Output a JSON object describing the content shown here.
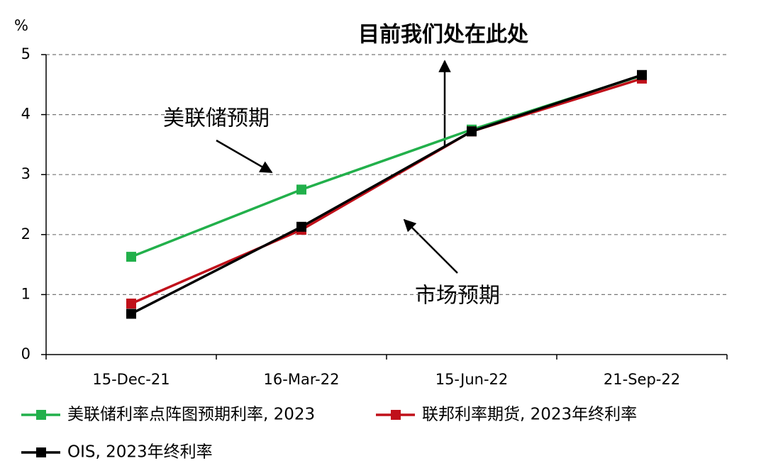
{
  "chart_data": {
    "type": "line",
    "title": "目前我们处在此处",
    "y_label": "%",
    "annotations": [
      "美联储预期",
      "市场预期"
    ],
    "categories": [
      "15-Dec-21",
      "16-Mar-22",
      "15-Jun-22",
      "21-Sep-22"
    ],
    "series": [
      {
        "name": "美联储利率点阵图预期利率, 2023",
        "color": "#22b04b",
        "values": [
          1.63,
          2.75,
          3.75,
          4.65
        ]
      },
      {
        "name": "联邦利率期货, 2023年终利率",
        "color": "#c0101a",
        "values": [
          0.85,
          2.08,
          3.72,
          4.6
        ]
      },
      {
        "name": "OIS, 2023年终利率",
        "color": "#000000",
        "values": [
          0.68,
          2.13,
          3.72,
          4.66
        ]
      }
    ],
    "ylim": [
      0,
      5
    ],
    "yticks": [
      0,
      1,
      2,
      3,
      4,
      5
    ],
    "grid": true
  }
}
